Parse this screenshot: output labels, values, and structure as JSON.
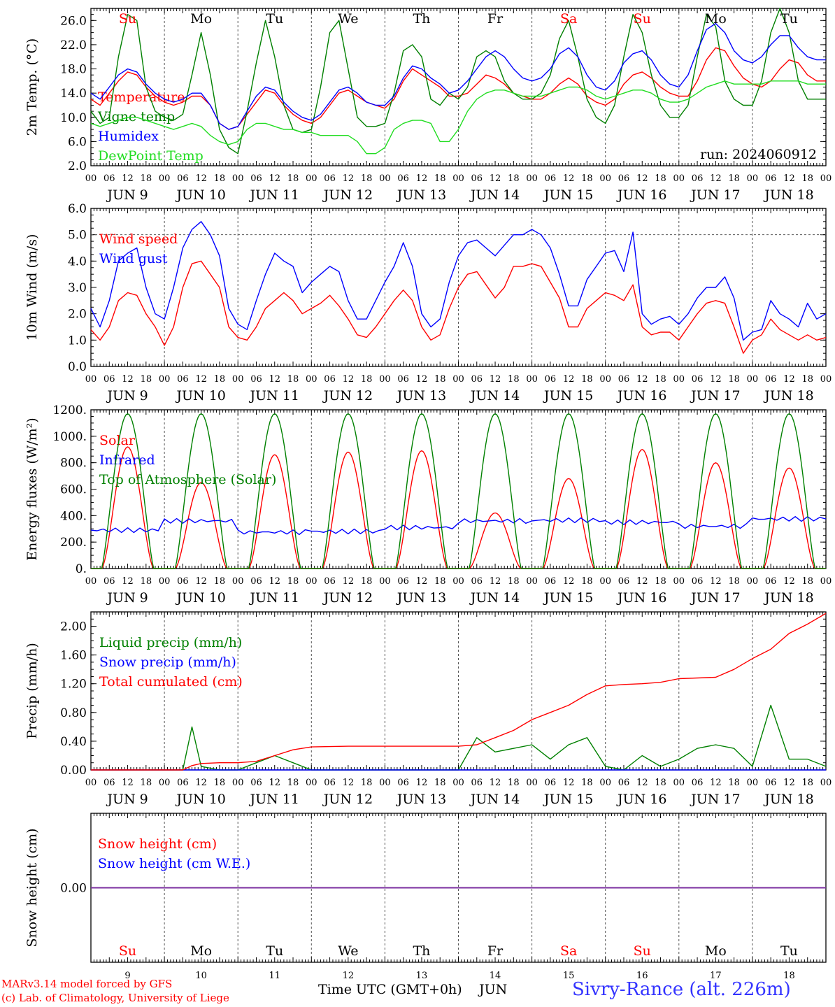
{
  "meta": {
    "run_label": "run: 2024060912",
    "footer_model": "MARv3.14 model forced by GFS",
    "footer_lab": "(c) Lab. of Climatology, University of Liege",
    "footer_axis": "Time UTC (GMT+0h)",
    "footer_month": "JUN",
    "footer_station": "Sivry-Rance (alt. 226m)"
  },
  "days": {
    "dates": [
      "JUN  9",
      "JUN 10",
      "JUN 11",
      "JUN 12",
      "JUN 13",
      "JUN 14",
      "JUN 15",
      "JUN 16",
      "JUN 17",
      "JUN 18"
    ],
    "day_numbers": [
      "9",
      "10",
      "11",
      "12",
      "13",
      "14",
      "15",
      "16",
      "17",
      "18"
    ],
    "weekdays": [
      "Su",
      "Mo",
      "Tu",
      "We",
      "Th",
      "Fr",
      "Sa",
      "Su",
      "Mo",
      "Tu"
    ],
    "weekend": [
      true,
      false,
      false,
      false,
      false,
      false,
      true,
      true,
      false,
      false
    ],
    "hours": [
      "00",
      "06",
      "12",
      "18"
    ],
    "end_hour": "00"
  },
  "colors": {
    "red": "#ff0000",
    "green": "#008000",
    "blue": "#0000ff",
    "lightgreen": "#22dd22",
    "purple": "#7b2fa0",
    "axis": "#000000"
  },
  "chart_data": [
    {
      "type": "line",
      "ylabel": "2m Temp. (°C)",
      "ylim": [
        2,
        28
      ],
      "yticks": [
        "2.0",
        "6.0",
        "10.0",
        "14.0",
        "18.0",
        "22.0",
        "26.0"
      ],
      "x_unit": "hours since JUN 9 00 UTC",
      "x": [
        0,
        3,
        6,
        9,
        12,
        15,
        18,
        21,
        24,
        27,
        30,
        33,
        36,
        39,
        42,
        45,
        48,
        51,
        54,
        57,
        60,
        63,
        66,
        69,
        72,
        75,
        78,
        81,
        84,
        87,
        90,
        93,
        96,
        99,
        102,
        105,
        108,
        111,
        114,
        117,
        120,
        123,
        126,
        129,
        132,
        135,
        138,
        141,
        144,
        147,
        150,
        153,
        156,
        159,
        162,
        165,
        168,
        171,
        174,
        177,
        180,
        183,
        186,
        189,
        192,
        195,
        198,
        201,
        204,
        207,
        210,
        213,
        216,
        219,
        222,
        225,
        228,
        231,
        234,
        237,
        240
      ],
      "series": [
        {
          "name": "Temperature",
          "color": "red",
          "values": [
            13,
            12,
            14,
            16,
            17.5,
            17,
            15,
            13.5,
            12.5,
            12,
            12.5,
            13.5,
            13.5,
            12,
            9,
            8,
            8.5,
            10.5,
            12.5,
            14.5,
            14,
            12,
            10.5,
            9.5,
            9,
            10,
            12,
            14,
            14.5,
            13.5,
            12.5,
            12,
            11.5,
            13,
            16,
            18,
            17,
            16,
            15,
            13.5,
            13.5,
            14,
            15.5,
            17,
            16.5,
            15.5,
            14,
            13.5,
            13,
            13,
            14,
            15.5,
            16.5,
            15.5,
            13.5,
            12.5,
            12,
            13,
            15.5,
            17,
            17.5,
            16.5,
            15,
            14,
            13.5,
            13.5,
            16,
            19.5,
            21.5,
            21,
            18.5,
            16.5,
            15.5,
            15,
            16,
            18,
            19.5,
            19,
            17,
            16,
            16
          ]
        },
        {
          "name": "Vigne temp",
          "color": "green",
          "values": [
            11,
            9,
            10,
            20,
            27,
            26,
            15,
            11,
            10,
            9.5,
            10.5,
            17,
            24,
            17,
            8,
            5,
            4,
            11,
            19,
            26,
            20,
            12,
            8,
            7.5,
            8,
            15,
            24,
            26,
            18,
            10,
            8.5,
            8.5,
            9,
            14,
            21,
            22,
            20,
            13,
            12,
            14,
            13,
            15,
            20,
            21,
            20,
            16,
            14,
            13,
            13,
            14,
            17,
            23,
            26,
            20,
            13,
            10,
            9,
            12,
            20,
            27,
            24,
            17,
            12,
            10,
            10,
            12,
            20,
            27,
            25,
            16,
            13,
            12,
            12,
            16,
            24,
            28,
            24,
            16,
            13,
            13,
            13
          ]
        },
        {
          "name": "Humidex",
          "color": "blue",
          "values": [
            14,
            13,
            15,
            17,
            18,
            17.5,
            15.5,
            14,
            13,
            12.5,
            13,
            14,
            14,
            12,
            9,
            8,
            8.5,
            11,
            13.5,
            15,
            14.5,
            12.5,
            11,
            10,
            9.5,
            10.5,
            12.5,
            14.5,
            15,
            14,
            12.5,
            12,
            12,
            13.5,
            16.5,
            18.5,
            18,
            16.5,
            15.5,
            14,
            14.5,
            16,
            18,
            20,
            21,
            20,
            18,
            16.5,
            16,
            16.5,
            18,
            20.5,
            21.5,
            20,
            17,
            15,
            14.5,
            16,
            19,
            20.5,
            21,
            19.5,
            17,
            15.5,
            15,
            17,
            21,
            24.5,
            25.5,
            24,
            21,
            19.5,
            19,
            20,
            22,
            23.5,
            23.5,
            21.5,
            20,
            19.5,
            19.5
          ]
        },
        {
          "name": "DewPoint Temp",
          "color": "lightgreen",
          "values": [
            9,
            8.5,
            9,
            9.5,
            10,
            10,
            9.5,
            9,
            8.5,
            8,
            8.5,
            9,
            8.5,
            7,
            6,
            5.5,
            6,
            8,
            9,
            9,
            8.5,
            8,
            8,
            7.5,
            7.5,
            7,
            7,
            7,
            7,
            6,
            4,
            4,
            5,
            8,
            9,
            9.5,
            9.5,
            9,
            6,
            6,
            8,
            11,
            13,
            14,
            14.5,
            14.5,
            14,
            13.5,
            13.5,
            13.5,
            14,
            14.5,
            15,
            15,
            14.5,
            13.5,
            13,
            13.5,
            14,
            14.5,
            14.5,
            14,
            13,
            12.5,
            12.5,
            13,
            14,
            15,
            15.5,
            16,
            15.5,
            15.5,
            15.5,
            15.5,
            16,
            16,
            16,
            16,
            15.5,
            15.5,
            15.5
          ]
        }
      ]
    },
    {
      "type": "line",
      "ylabel": "10m Wind (m/s)",
      "ylim": [
        0,
        6
      ],
      "yticks": [
        "0.0",
        "1.0",
        "2.0",
        "3.0",
        "4.0",
        "5.0",
        "6.0"
      ],
      "reference_line": 5,
      "x_unit": "hours since JUN 9 00 UTC",
      "x": [
        0,
        3,
        6,
        9,
        12,
        15,
        18,
        21,
        24,
        27,
        30,
        33,
        36,
        39,
        42,
        45,
        48,
        51,
        54,
        57,
        60,
        63,
        66,
        69,
        72,
        75,
        78,
        81,
        84,
        87,
        90,
        93,
        96,
        99,
        102,
        105,
        108,
        111,
        114,
        117,
        120,
        123,
        126,
        129,
        132,
        135,
        138,
        141,
        144,
        147,
        150,
        153,
        156,
        159,
        162,
        165,
        168,
        171,
        174,
        177,
        180,
        183,
        186,
        189,
        192,
        195,
        198,
        201,
        204,
        207,
        210,
        213,
        216,
        219,
        222,
        225,
        228,
        231,
        234,
        237,
        240
      ],
      "series": [
        {
          "name": "Wind speed",
          "color": "red",
          "values": [
            1.4,
            1,
            1.5,
            2.5,
            2.8,
            2.7,
            2,
            1.5,
            0.8,
            1.5,
            3,
            3.9,
            4,
            3.5,
            3,
            1.5,
            1.1,
            1,
            1.5,
            2.2,
            2.5,
            2.8,
            2.5,
            2,
            2.2,
            2.4,
            2.7,
            2.3,
            1.8,
            1.2,
            1.1,
            1.5,
            2,
            2.5,
            2.9,
            2.5,
            1.5,
            1,
            1.2,
            2.2,
            3,
            3.5,
            3.6,
            3.1,
            2.6,
            3,
            3.8,
            3.8,
            3.9,
            3.8,
            3.2,
            2.6,
            1.5,
            1.5,
            2.2,
            2.5,
            2.8,
            2.7,
            2.5,
            3.1,
            1.5,
            1.2,
            1.3,
            1.3,
            1,
            1.5,
            2,
            2.4,
            2.5,
            2.4,
            1.5,
            0.5,
            1,
            1.2,
            1.8,
            1.4,
            1.2,
            1,
            1.2,
            1,
            1.1
          ]
        },
        {
          "name": "Wind gust",
          "color": "blue",
          "values": [
            2.2,
            1.5,
            2.5,
            4,
            4.3,
            4.5,
            3,
            2,
            1.8,
            3,
            4.5,
            5.2,
            5.5,
            5,
            4.2,
            2.2,
            1.6,
            1.4,
            2.5,
            3.5,
            4.3,
            4,
            3.8,
            2.8,
            3.2,
            3.5,
            3.8,
            3.6,
            2.5,
            1.8,
            1.8,
            2.5,
            3.2,
            3.8,
            4.7,
            3.8,
            2,
            1.5,
            1.8,
            3.2,
            4.2,
            4.7,
            4.8,
            4.5,
            4.2,
            4.6,
            5,
            5,
            5.2,
            5,
            4.5,
            3.5,
            2.3,
            2.3,
            3.3,
            3.8,
            4.3,
            4.4,
            3.6,
            5.1,
            2,
            1.6,
            1.8,
            1.9,
            1.6,
            2,
            2.6,
            3,
            3,
            3.4,
            2.6,
            1,
            1.3,
            1.4,
            2.5,
            2,
            1.8,
            1.5,
            2.4,
            1.8,
            2
          ]
        }
      ]
    },
    {
      "type": "line",
      "ylabel": "Energy fluxes (W/m²)",
      "ylim": [
        0,
        1200
      ],
      "yticks": [
        "0.",
        "200.",
        "400.",
        "600.",
        "800.",
        "1000.",
        "1200."
      ],
      "x_unit": "hours since JUN 9 00 UTC",
      "diurnal": {
        "sunrise_hour": 3.5,
        "sunset_hour": 20.5,
        "noon_hour": 12
      },
      "series": [
        {
          "name": "Solar",
          "color": "red",
          "daily_peak": [
            920,
            650,
            860,
            880,
            890,
            420,
            680,
            900,
            800,
            760
          ]
        },
        {
          "name": "Infrared",
          "color": "blue",
          "daily_level": [
            290,
            360,
            275,
            280,
            310,
            360,
            365,
            350,
            320,
            375
          ]
        },
        {
          "name": "Top of Atmosphere (Solar)",
          "color": "green",
          "daily_peak": [
            1170,
            1170,
            1170,
            1170,
            1170,
            1170,
            1170,
            1170,
            1170,
            1170
          ]
        }
      ]
    },
    {
      "type": "line",
      "ylabel": "Precip (mm/h)",
      "ylim": [
        0,
        2.2
      ],
      "yticks": [
        "0.00",
        "0.40",
        "0.80",
        "1.20",
        "1.60",
        "2.00"
      ],
      "x_unit": "hours since JUN 9 00 UTC",
      "x": [
        0,
        6,
        12,
        18,
        24,
        30,
        33,
        36,
        42,
        48,
        54,
        60,
        66,
        72,
        84,
        96,
        108,
        120,
        126,
        132,
        138,
        144,
        150,
        156,
        162,
        168,
        174,
        180,
        186,
        192,
        198,
        204,
        210,
        216,
        222,
        228,
        234,
        240
      ],
      "series": [
        {
          "name": "Liquid precip (mm/h)",
          "color": "green",
          "values": [
            0,
            0,
            0,
            0,
            0,
            0,
            0.6,
            0.05,
            0,
            0,
            0.1,
            0.2,
            0.1,
            0,
            0,
            0,
            0,
            0,
            0.45,
            0.25,
            0.3,
            0.35,
            0.15,
            0.35,
            0.45,
            0.05,
            0,
            0.2,
            0.05,
            0.15,
            0.3,
            0.35,
            0.3,
            0.05,
            0.9,
            0.15,
            0.15,
            0.05
          ]
        },
        {
          "name": "Snow precip (mm/h)",
          "color": "blue",
          "values": [
            0,
            0,
            0,
            0,
            0,
            0,
            0,
            0,
            0,
            0,
            0,
            0,
            0,
            0,
            0,
            0,
            0,
            0,
            0,
            0,
            0,
            0,
            0,
            0,
            0,
            0,
            0,
            0,
            0,
            0,
            0,
            0,
            0,
            0,
            0,
            0,
            0,
            0
          ]
        },
        {
          "name": "Total cumulated (cm)",
          "color": "red",
          "values": [
            0,
            0,
            0,
            0,
            0,
            0,
            0.06,
            0.09,
            0.1,
            0.1,
            0.12,
            0.2,
            0.28,
            0.32,
            0.33,
            0.33,
            0.33,
            0.33,
            0.35,
            0.45,
            0.55,
            0.7,
            0.8,
            0.9,
            1.05,
            1.17,
            1.19,
            1.2,
            1.22,
            1.27,
            1.28,
            1.29,
            1.4,
            1.55,
            1.68,
            1.9,
            2.03,
            2.18
          ]
        }
      ]
    },
    {
      "type": "line",
      "ylabel": "Snow height (cm)",
      "ylim": [
        -1,
        1
      ],
      "yticks": [
        "0.00"
      ],
      "x_unit": "hours since JUN 9 00 UTC",
      "x": [
        0,
        240
      ],
      "series": [
        {
          "name": "Snow height (cm)",
          "color": "red",
          "values": [
            0,
            0
          ]
        },
        {
          "name": "Snow height (cm W.E.)",
          "color": "blue",
          "values": [
            0,
            0
          ]
        }
      ]
    }
  ]
}
